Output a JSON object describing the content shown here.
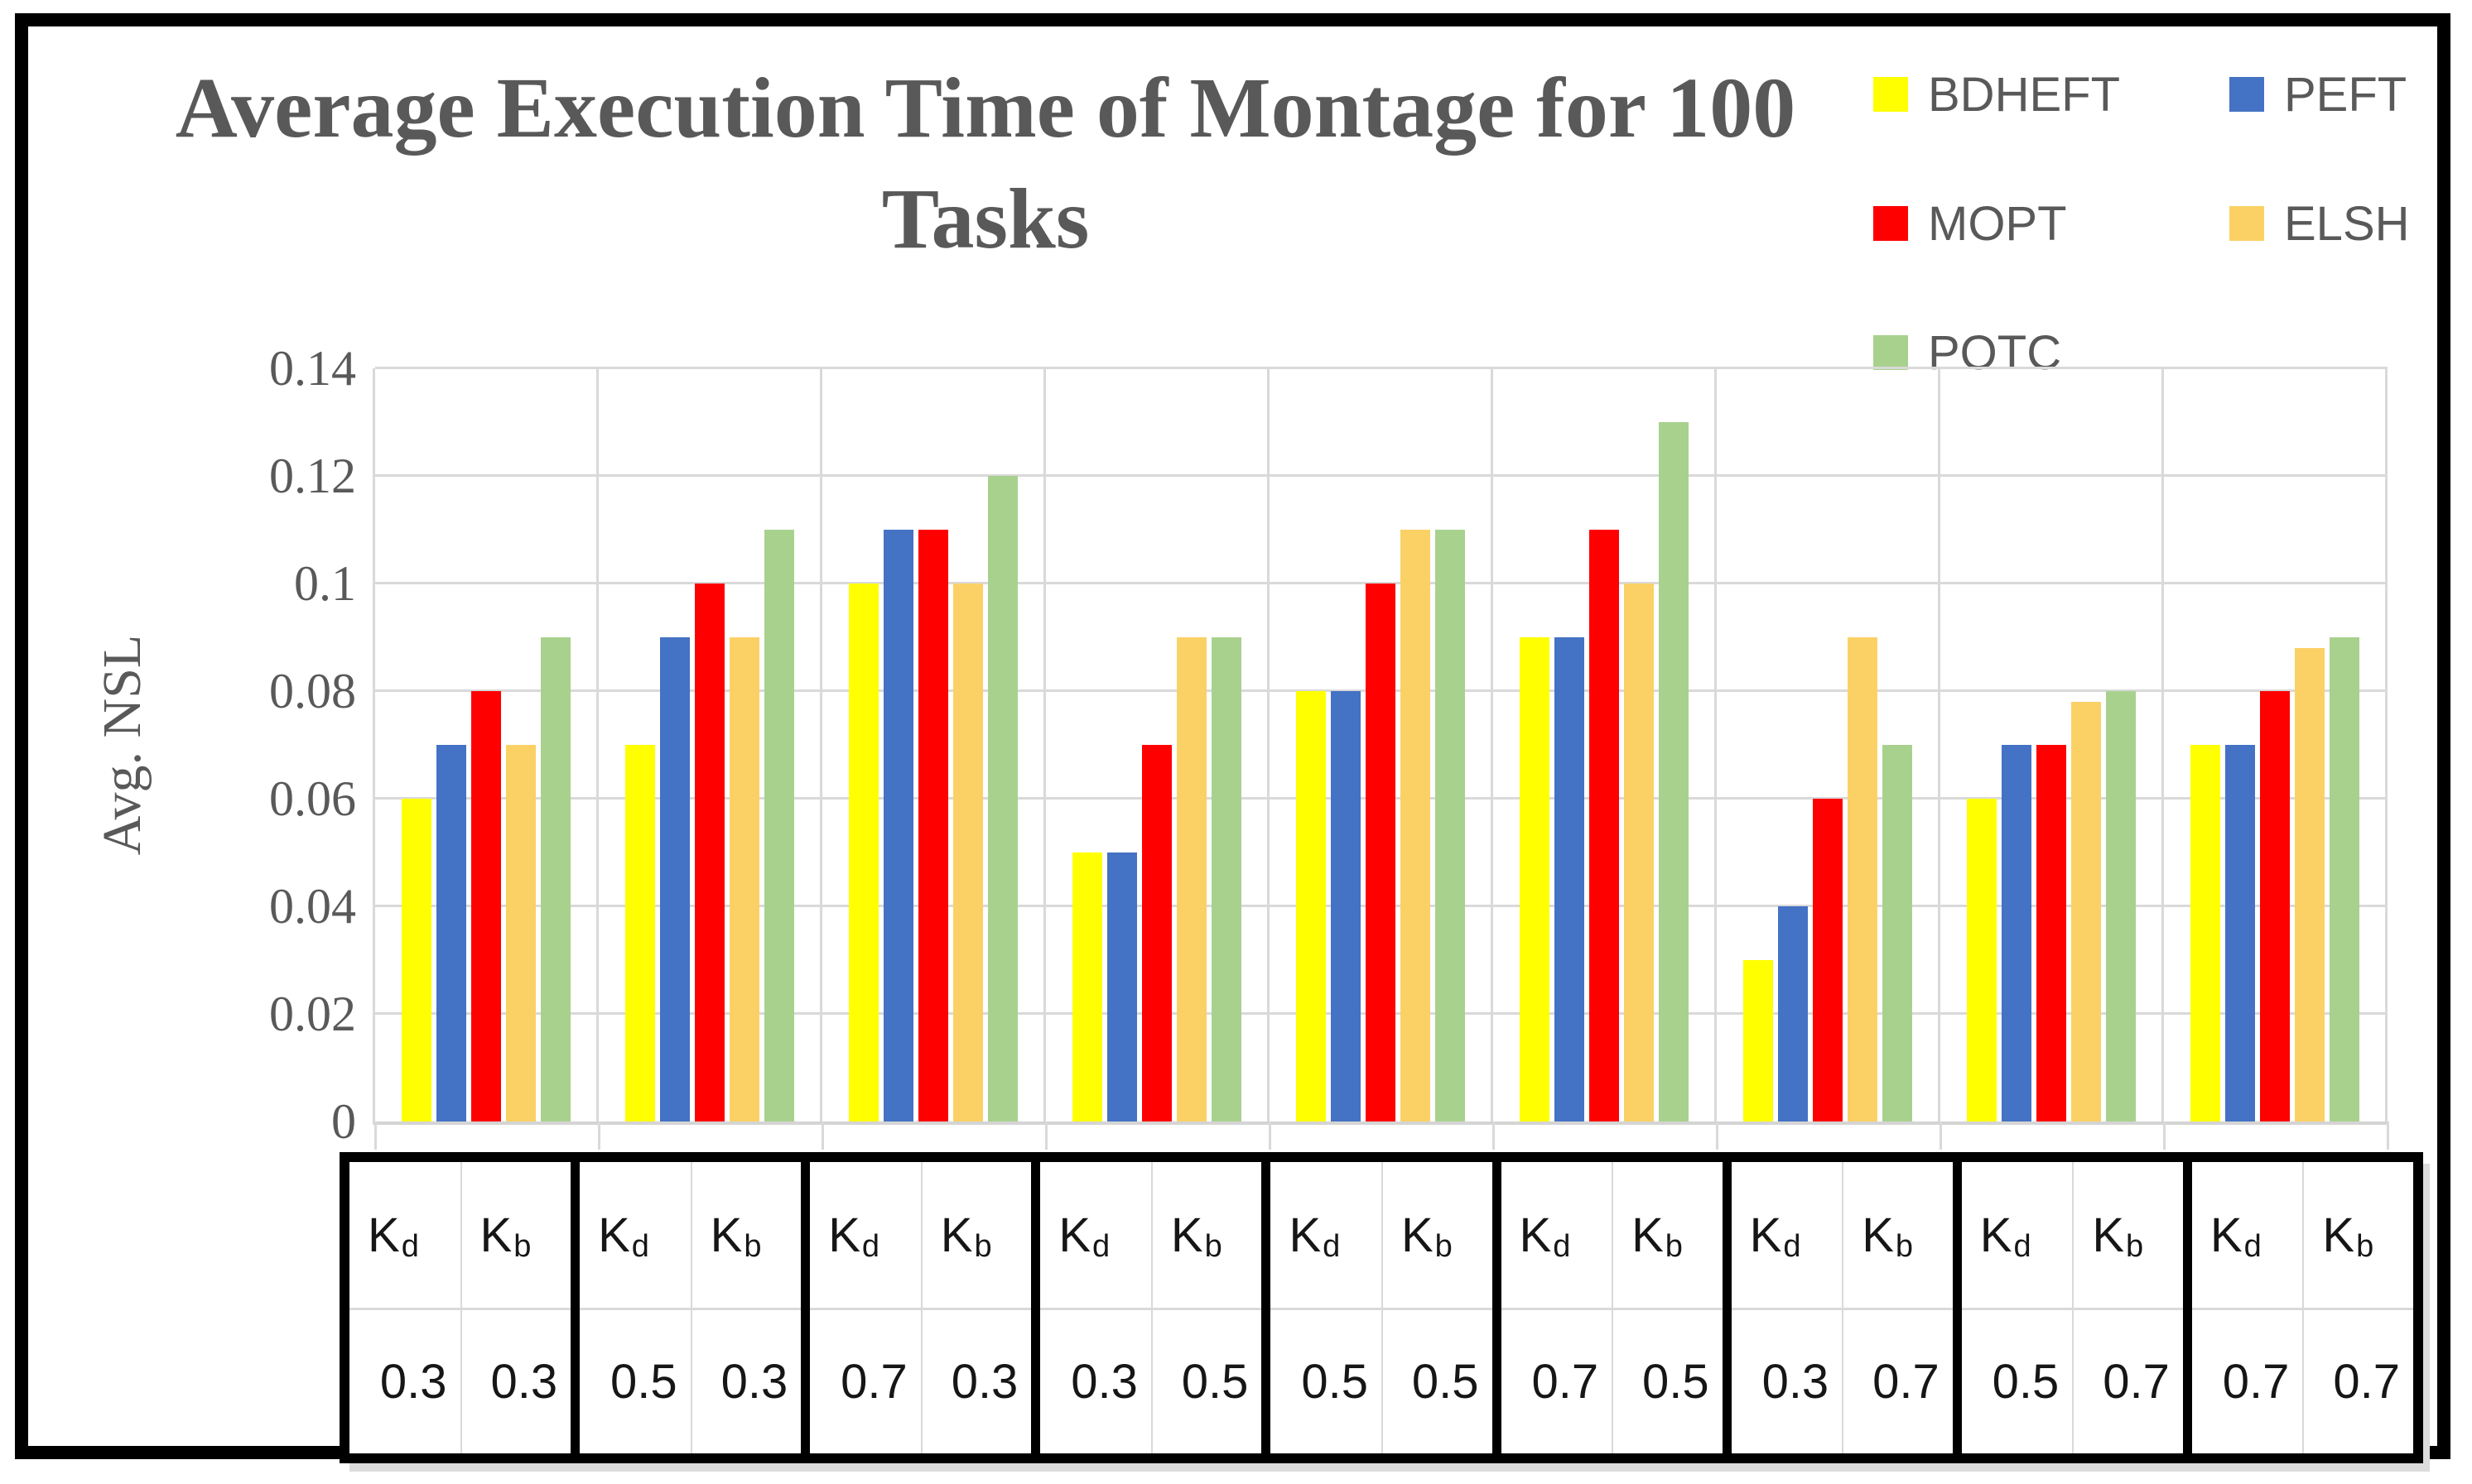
{
  "title": {
    "line1": "Average Execution Time of Montage for 100",
    "line2": "Tasks"
  },
  "y_axis": {
    "label": "Avg. NSL",
    "ticks": [
      "0.14",
      "0.12",
      "0.1",
      "0.08",
      "0.06",
      "0.04",
      "0.02",
      "0"
    ]
  },
  "legend": {
    "items": [
      {
        "label": "BDHEFT",
        "color": "#FFFF00"
      },
      {
        "label": "PEFT",
        "color": "#4472C4"
      },
      {
        "label": "MOPT",
        "color": "#FF0000"
      },
      {
        "label": "ELSH",
        "color": "#FBD166"
      },
      {
        "label": "POTC",
        "color": "#A9D18E"
      }
    ]
  },
  "x_table": {
    "header_symbol": "K",
    "sub_d": "d",
    "sub_b": "b",
    "groups": [
      {
        "kd": "0.3",
        "kb": "0.3"
      },
      {
        "kd": "0.5",
        "kb": "0.3"
      },
      {
        "kd": "0.7",
        "kb": "0.3"
      },
      {
        "kd": "0.3",
        "kb": "0.5"
      },
      {
        "kd": "0.5",
        "kb": "0.5"
      },
      {
        "kd": "0.7",
        "kb": "0.5"
      },
      {
        "kd": "0.3",
        "kb": "0.7"
      },
      {
        "kd": "0.5",
        "kb": "0.7"
      },
      {
        "kd": "0.7",
        "kb": "0.7"
      }
    ]
  },
  "chart_data": {
    "type": "bar",
    "title": "Average Execution Time of Montage for 100 Tasks",
    "xlabel": "",
    "ylabel": "Avg. NSL",
    "ylim": [
      0,
      0.14
    ],
    "ytick_step": 0.02,
    "grid": true,
    "legend_position": "top-right",
    "categories": [
      {
        "Kd": 0.3,
        "Kb": 0.3
      },
      {
        "Kd": 0.5,
        "Kb": 0.3
      },
      {
        "Kd": 0.7,
        "Kb": 0.3
      },
      {
        "Kd": 0.3,
        "Kb": 0.5
      },
      {
        "Kd": 0.5,
        "Kb": 0.5
      },
      {
        "Kd": 0.7,
        "Kb": 0.5
      },
      {
        "Kd": 0.3,
        "Kb": 0.7
      },
      {
        "Kd": 0.5,
        "Kb": 0.7
      },
      {
        "Kd": 0.7,
        "Kb": 0.7
      }
    ],
    "series": [
      {
        "name": "BDHEFT",
        "color": "#FFFF00",
        "values": [
          0.06,
          0.07,
          0.1,
          0.05,
          0.08,
          0.09,
          0.03,
          0.06,
          0.07
        ]
      },
      {
        "name": "PEFT",
        "color": "#4472C4",
        "values": [
          0.07,
          0.09,
          0.11,
          0.05,
          0.08,
          0.09,
          0.04,
          0.07,
          0.07
        ]
      },
      {
        "name": "MOPT",
        "color": "#FF0000",
        "values": [
          0.08,
          0.1,
          0.11,
          0.07,
          0.1,
          0.11,
          0.06,
          0.07,
          0.08
        ]
      },
      {
        "name": "ELSH",
        "color": "#FBD166",
        "values": [
          0.07,
          0.09,
          0.1,
          0.09,
          0.11,
          0.1,
          0.09,
          0.078,
          0.088
        ]
      },
      {
        "name": "POTC",
        "color": "#A9D18E",
        "values": [
          0.09,
          0.11,
          0.12,
          0.09,
          0.11,
          0.13,
          0.07,
          0.08,
          0.09
        ]
      }
    ]
  },
  "colors": {
    "text_gray": "#595959",
    "gridline": "#D9D9D9",
    "frame": "#000000",
    "table_border": "#000000"
  }
}
